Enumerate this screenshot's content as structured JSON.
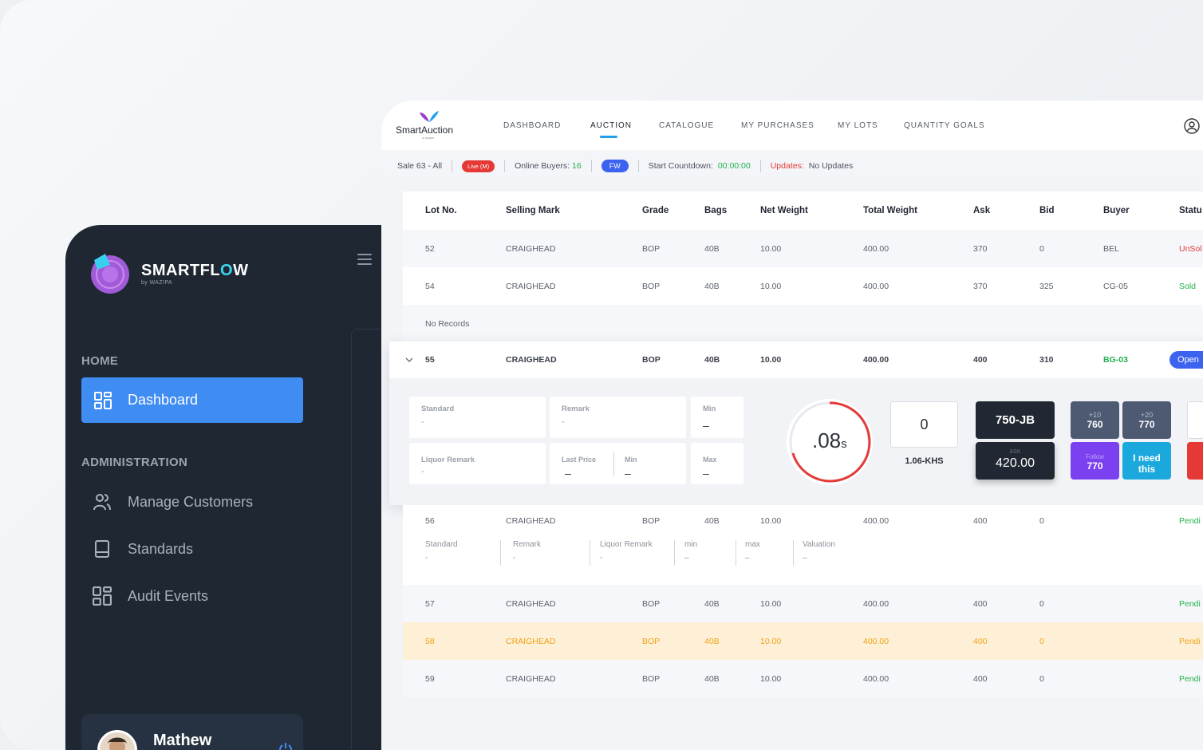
{
  "smartflow": {
    "brand_pre": "SMARTFL",
    "brand_o": "O",
    "brand_post": "W",
    "by": "by WAZIPA",
    "sections": {
      "home": "HOME",
      "administration": "ADMINISTRATION"
    },
    "nav": {
      "dashboard": "Dashboard",
      "manage_customers": "Manage Customers",
      "standards": "Standards",
      "audit_events": "Audit Events"
    },
    "user": {
      "name": "Mathew"
    }
  },
  "auction": {
    "logo": "SmartAuction",
    "logo_sub": "by WAZIPA",
    "nav": [
      "DASHBOARD",
      "AUCTION",
      "CATALOGUE",
      "MY PURCHASES",
      "MY LOTS",
      "QUANTITY GOALS"
    ],
    "status": {
      "sale": "Sale 63 - All",
      "live": "Live (M)",
      "online_label": "Online Buyers:",
      "online_value": "16",
      "fw": "FW",
      "countdown_label": "Start Countdown:",
      "countdown_value": "00:00:00",
      "updates_label": "Updates:",
      "updates_value": "No Updates"
    },
    "columns": [
      "Lot No.",
      "Selling Mark",
      "Grade",
      "Bags",
      "Net Weight",
      "Total Weight",
      "Ask",
      "Bid",
      "Buyer",
      "Statu"
    ],
    "rows_top": [
      [
        "52",
        "CRAIGHEAD",
        "BOP",
        "40B",
        "10.00",
        "400.00",
        "370",
        "0",
        "BEL",
        "UnSol"
      ],
      [
        "54",
        "CRAIGHEAD",
        "BOP",
        "40B",
        "10.00",
        "400.00",
        "370",
        "325",
        "CG-05",
        "Sold"
      ]
    ],
    "no_records": "No Records",
    "expanded_row": [
      "55",
      "CRAIGHEAD",
      "BOP",
      "40B",
      "10.00",
      "400.00",
      "400",
      "310",
      "BG-03",
      "Open"
    ],
    "detail": {
      "standard_label": "Standard",
      "standard_value": "-",
      "remark_label": "Remark",
      "remark_value": "-",
      "min_label": "Min",
      "min_value": "–",
      "liquor_label": "Liquor Remark",
      "liquor_value": "-",
      "last_price_label": "Last Price",
      "last_price_value": "–",
      "min2_label": "Min",
      "min2_value": "–",
      "max_label": "Max",
      "max_value": "–",
      "timer": ".08",
      "timer_unit": "s",
      "qty": "0",
      "rate": "1.06-KHS",
      "code": "750-JB",
      "ask_label": "ASK",
      "ask_value": "420.00",
      "inc10_label": "+10",
      "inc10_value": "760",
      "inc20_label": "+20",
      "inc20_value": "770",
      "follow_label": "Follow",
      "follow_value": "770",
      "need_l1": "I need",
      "need_l2": "this"
    },
    "row56": [
      "56",
      "CRAIGHEAD",
      "BOP",
      "40B",
      "10.00",
      "400.00",
      "400",
      "0",
      "",
      "Pendi"
    ],
    "sub56": [
      {
        "label": "Standard",
        "value": "-"
      },
      {
        "label": "Remark",
        "value": "-"
      },
      {
        "label": "Liquor Remark",
        "value": "-"
      },
      {
        "label": "min",
        "value": "–"
      },
      {
        "label": "max",
        "value": "–"
      },
      {
        "label": "Valuation",
        "value": "–"
      }
    ],
    "rows_bottom": [
      [
        "57",
        "CRAIGHEAD",
        "BOP",
        "40B",
        "10.00",
        "400.00",
        "400",
        "0",
        "",
        "Pendi"
      ],
      [
        "58",
        "CRAIGHEAD",
        "BOP",
        "40B",
        "10.00",
        "400.00",
        "400",
        "0",
        "",
        "Pendi"
      ],
      [
        "59",
        "CRAIGHEAD",
        "BOP",
        "40B",
        "10.00",
        "400.00",
        "400",
        "0",
        "",
        "Pendi"
      ]
    ],
    "colors": {
      "accent": "#3b63f0",
      "sold": "#23b14d",
      "unsold": "#e53935",
      "highlight": "#f0a316"
    }
  }
}
